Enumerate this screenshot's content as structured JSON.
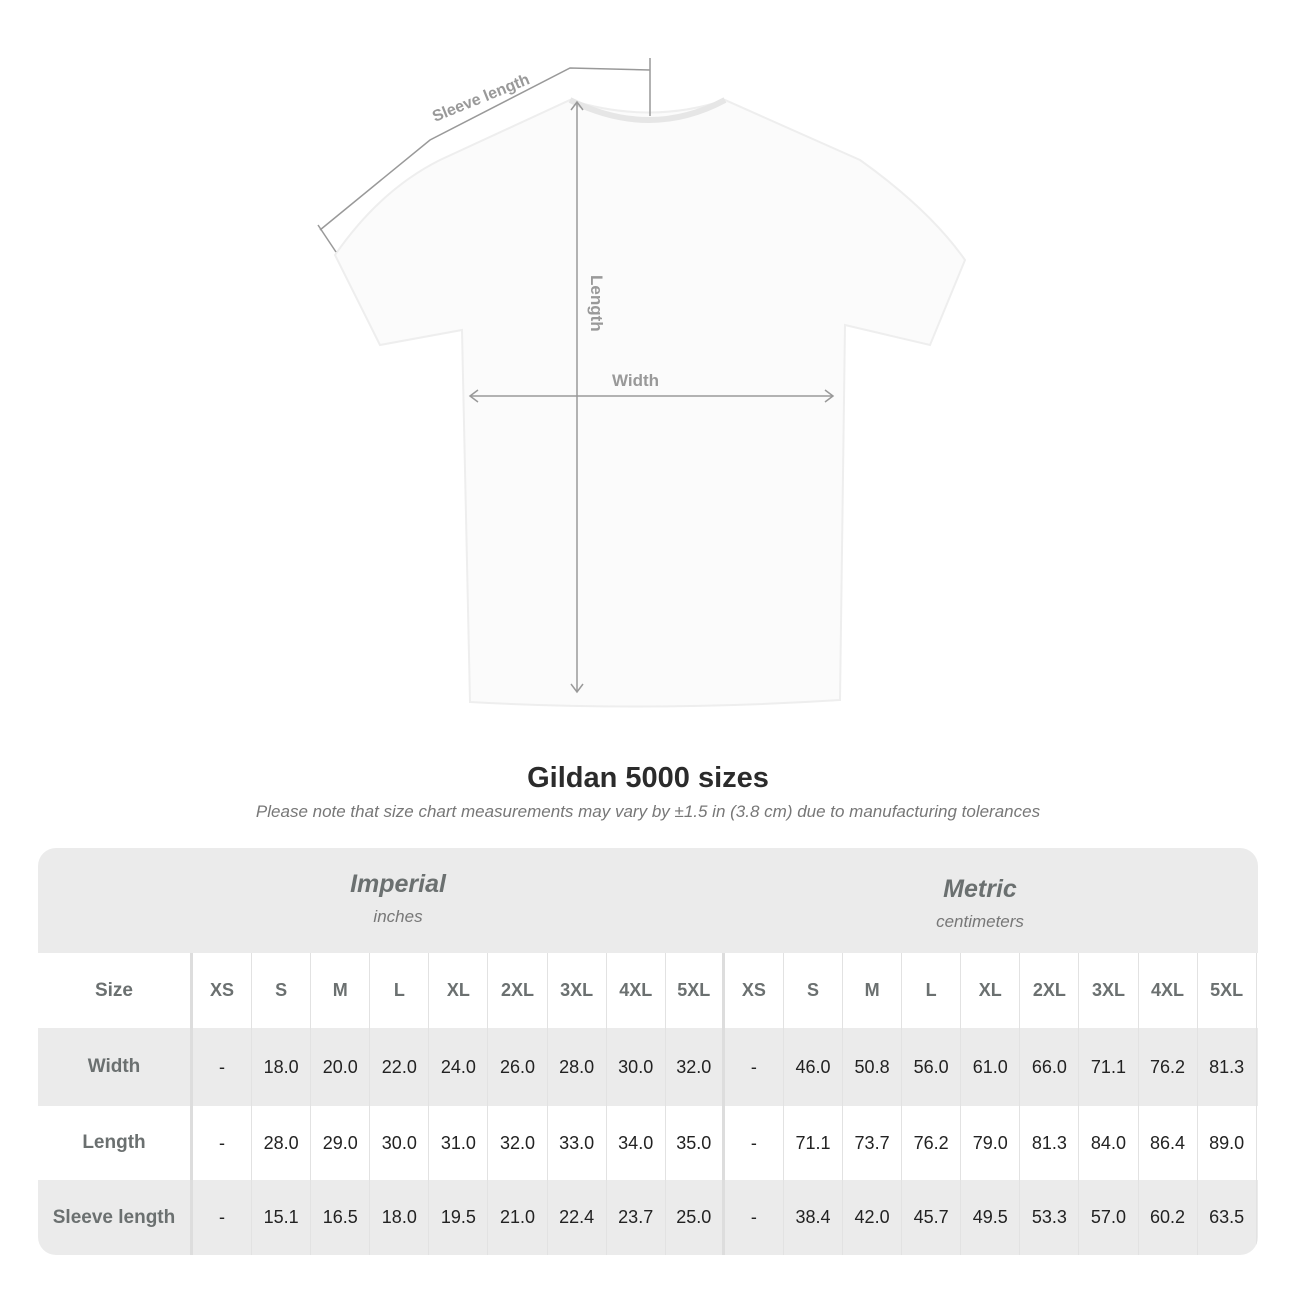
{
  "diagram": {
    "sleeve_label": "Sleeve length",
    "length_label": "Length",
    "width_label": "Width"
  },
  "title": "Gildan 5000 sizes",
  "note": "Please note that size chart measurements may vary by ±1.5 in (3.8 cm) due to manufacturing tolerances",
  "table": {
    "imperial": {
      "name": "Imperial",
      "unit": "inches"
    },
    "metric": {
      "name": "Metric",
      "unit": "centimeters"
    },
    "size_label": "Size",
    "sizes": [
      "XS",
      "S",
      "M",
      "L",
      "XL",
      "2XL",
      "3XL",
      "4XL",
      "5XL"
    ],
    "rows": [
      {
        "label": "Width",
        "imperial": [
          "-",
          "18.0",
          "20.0",
          "22.0",
          "24.0",
          "26.0",
          "28.0",
          "30.0",
          "32.0"
        ],
        "metric": [
          "-",
          "46.0",
          "50.8",
          "56.0",
          "61.0",
          "66.0",
          "71.1",
          "76.2",
          "81.3"
        ]
      },
      {
        "label": "Length",
        "imperial": [
          "-",
          "28.0",
          "29.0",
          "30.0",
          "31.0",
          "32.0",
          "33.0",
          "34.0",
          "35.0"
        ],
        "metric": [
          "-",
          "71.1",
          "73.7",
          "76.2",
          "79.0",
          "81.3",
          "84.0",
          "86.4",
          "89.0"
        ]
      },
      {
        "label": "Sleeve length",
        "imperial": [
          "-",
          "15.1",
          "16.5",
          "18.0",
          "19.5",
          "21.0",
          "22.4",
          "23.7",
          "25.0"
        ],
        "metric": [
          "-",
          "38.4",
          "42.0",
          "45.7",
          "49.5",
          "53.3",
          "57.0",
          "60.2",
          "63.5"
        ]
      }
    ]
  },
  "colors": {
    "band": "#ebebeb",
    "header_text": "#6b7070",
    "measure_line": "#999999"
  }
}
